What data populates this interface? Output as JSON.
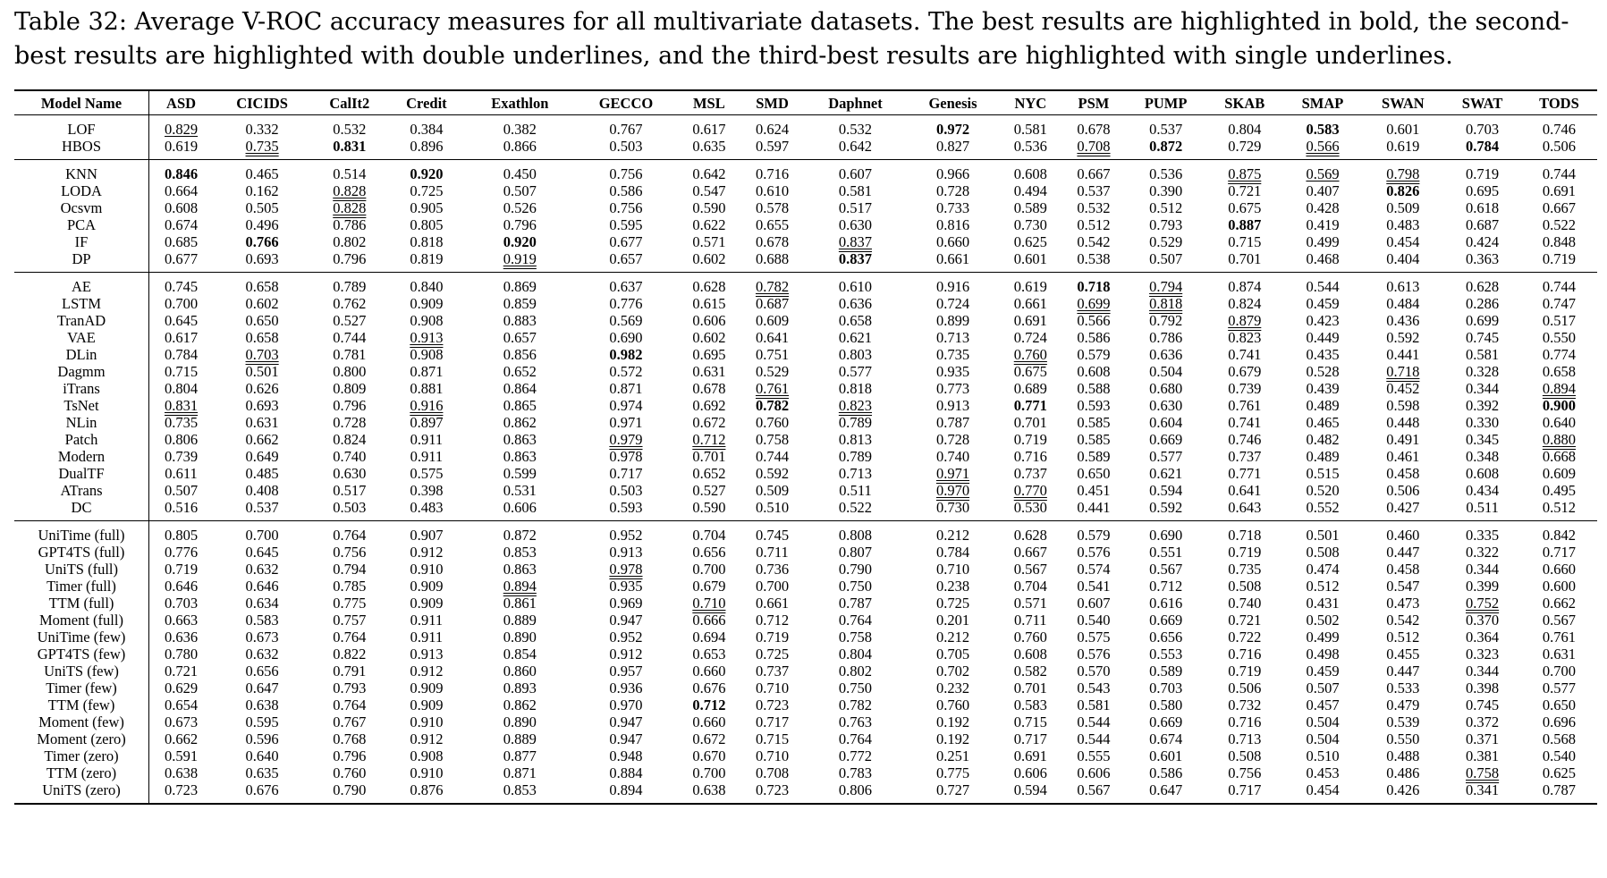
{
  "caption": "Table 32: Average V-ROC accuracy measures for all multivariate datasets. The best results are highlighted in bold, the second-best results are highlighted with double underlines, and the third-best results are highlighted with single underlines.",
  "columns": [
    "Model Name",
    "ASD",
    "CICIDS",
    "CalIt2",
    "Credit",
    "Exathlon",
    "GECCO",
    "MSL",
    "SMD",
    "Daphnet",
    "Genesis",
    "NYC",
    "PSM",
    "PUMP",
    "SKAB",
    "SMAP",
    "SWAN",
    "SWAT",
    "TODS"
  ],
  "groups": [
    [
      {
        "name": "LOF",
        "values": [
          "0.829",
          "0.332",
          "0.532",
          "0.384",
          "0.382",
          "0.767",
          "0.617",
          "0.624",
          "0.532",
          "0.972",
          "0.581",
          "0.678",
          "0.537",
          "0.804",
          "0.583",
          "0.601",
          "0.703",
          "0.746"
        ],
        "fmt": {
          "0": "u1",
          "9": "b",
          "14": "b"
        }
      },
      {
        "name": "HBOS",
        "values": [
          "0.619",
          "0.735",
          "0.831",
          "0.896",
          "0.866",
          "0.503",
          "0.635",
          "0.597",
          "0.642",
          "0.827",
          "0.536",
          "0.708",
          "0.872",
          "0.729",
          "0.566",
          "0.619",
          "0.784",
          "0.506"
        ],
        "fmt": {
          "1": "u2",
          "2": "b",
          "11": "u2",
          "12": "b",
          "14": "u2",
          "16": "b"
        }
      }
    ],
    [
      {
        "name": "KNN",
        "values": [
          "0.846",
          "0.465",
          "0.514",
          "0.920",
          "0.450",
          "0.756",
          "0.642",
          "0.716",
          "0.607",
          "0.966",
          "0.608",
          "0.667",
          "0.536",
          "0.875",
          "0.569",
          "0.798",
          "0.719",
          "0.744"
        ],
        "fmt": {
          "0": "b",
          "3": "b",
          "13": "u2",
          "14": "u1",
          "15": "u2"
        }
      },
      {
        "name": "LODA",
        "values": [
          "0.664",
          "0.162",
          "0.828",
          "0.725",
          "0.507",
          "0.586",
          "0.547",
          "0.610",
          "0.581",
          "0.728",
          "0.494",
          "0.537",
          "0.390",
          "0.721",
          "0.407",
          "0.826",
          "0.695",
          "0.691"
        ],
        "fmt": {
          "2": "u2",
          "15": "b"
        }
      },
      {
        "name": "Ocsvm",
        "values": [
          "0.608",
          "0.505",
          "0.828",
          "0.905",
          "0.526",
          "0.756",
          "0.590",
          "0.578",
          "0.517",
          "0.733",
          "0.589",
          "0.532",
          "0.512",
          "0.675",
          "0.428",
          "0.509",
          "0.618",
          "0.667"
        ],
        "fmt": {
          "2": "u2"
        }
      },
      {
        "name": "PCA",
        "values": [
          "0.674",
          "0.496",
          "0.786",
          "0.805",
          "0.796",
          "0.595",
          "0.622",
          "0.655",
          "0.630",
          "0.816",
          "0.730",
          "0.512",
          "0.793",
          "0.887",
          "0.419",
          "0.483",
          "0.687",
          "0.522"
        ],
        "fmt": {
          "13": "b"
        }
      },
      {
        "name": "IF",
        "values": [
          "0.685",
          "0.766",
          "0.802",
          "0.818",
          "0.920",
          "0.677",
          "0.571",
          "0.678",
          "0.837",
          "0.660",
          "0.625",
          "0.542",
          "0.529",
          "0.715",
          "0.499",
          "0.454",
          "0.424",
          "0.848"
        ],
        "fmt": {
          "1": "b",
          "4": "b",
          "8": "u2"
        }
      },
      {
        "name": "DP",
        "values": [
          "0.677",
          "0.693",
          "0.796",
          "0.819",
          "0.919",
          "0.657",
          "0.602",
          "0.688",
          "0.837",
          "0.661",
          "0.601",
          "0.538",
          "0.507",
          "0.701",
          "0.468",
          "0.404",
          "0.363",
          "0.719"
        ],
        "fmt": {
          "4": "u2",
          "8": "b"
        }
      }
    ],
    [
      {
        "name": "AE",
        "values": [
          "0.745",
          "0.658",
          "0.789",
          "0.840",
          "0.869",
          "0.637",
          "0.628",
          "0.782",
          "0.610",
          "0.916",
          "0.619",
          "0.718",
          "0.794",
          "0.874",
          "0.544",
          "0.613",
          "0.628",
          "0.744"
        ],
        "fmt": {
          "7": "u2",
          "11": "b",
          "12": "u2"
        }
      },
      {
        "name": "LSTM",
        "values": [
          "0.700",
          "0.602",
          "0.762",
          "0.909",
          "0.859",
          "0.776",
          "0.615",
          "0.687",
          "0.636",
          "0.724",
          "0.661",
          "0.699",
          "0.818",
          "0.824",
          "0.459",
          "0.484",
          "0.286",
          "0.747"
        ],
        "fmt": {
          "11": "u2",
          "12": "u2"
        }
      },
      {
        "name": "TranAD",
        "values": [
          "0.645",
          "0.650",
          "0.527",
          "0.908",
          "0.883",
          "0.569",
          "0.606",
          "0.609",
          "0.658",
          "0.899",
          "0.691",
          "0.566",
          "0.792",
          "0.879",
          "0.423",
          "0.436",
          "0.699",
          "0.517"
        ],
        "fmt": {
          "13": "u2"
        }
      },
      {
        "name": "VAE",
        "values": [
          "0.617",
          "0.658",
          "0.744",
          "0.913",
          "0.657",
          "0.690",
          "0.602",
          "0.641",
          "0.621",
          "0.713",
          "0.724",
          "0.586",
          "0.786",
          "0.823",
          "0.449",
          "0.592",
          "0.745",
          "0.550"
        ],
        "fmt": {
          "3": "u2"
        }
      },
      {
        "name": "DLin",
        "values": [
          "0.784",
          "0.703",
          "0.781",
          "0.908",
          "0.856",
          "0.982",
          "0.695",
          "0.751",
          "0.803",
          "0.735",
          "0.760",
          "0.579",
          "0.636",
          "0.741",
          "0.435",
          "0.441",
          "0.581",
          "0.774"
        ],
        "fmt": {
          "1": "u2",
          "5": "b",
          "10": "u2"
        }
      },
      {
        "name": "Dagmm",
        "values": [
          "0.715",
          "0.501",
          "0.800",
          "0.871",
          "0.652",
          "0.572",
          "0.631",
          "0.529",
          "0.577",
          "0.935",
          "0.675",
          "0.608",
          "0.504",
          "0.679",
          "0.528",
          "0.718",
          "0.328",
          "0.658"
        ],
        "fmt": {
          "15": "u2"
        }
      },
      {
        "name": "iTrans",
        "values": [
          "0.804",
          "0.626",
          "0.809",
          "0.881",
          "0.864",
          "0.871",
          "0.678",
          "0.761",
          "0.818",
          "0.773",
          "0.689",
          "0.588",
          "0.680",
          "0.739",
          "0.439",
          "0.452",
          "0.344",
          "0.894"
        ],
        "fmt": {
          "7": "u2",
          "17": "u2"
        }
      },
      {
        "name": "TsNet",
        "values": [
          "0.831",
          "0.693",
          "0.796",
          "0.916",
          "0.865",
          "0.974",
          "0.692",
          "0.782",
          "0.823",
          "0.913",
          "0.771",
          "0.593",
          "0.630",
          "0.761",
          "0.489",
          "0.598",
          "0.392",
          "0.900"
        ],
        "fmt": {
          "0": "u2",
          "3": "u2",
          "7": "b",
          "8": "u2",
          "10": "b",
          "17": "b"
        }
      },
      {
        "name": "NLin",
        "values": [
          "0.735",
          "0.631",
          "0.728",
          "0.897",
          "0.862",
          "0.971",
          "0.672",
          "0.760",
          "0.789",
          "0.787",
          "0.701",
          "0.585",
          "0.604",
          "0.741",
          "0.465",
          "0.448",
          "0.330",
          "0.640"
        ],
        "fmt": {}
      },
      {
        "name": "Patch",
        "values": [
          "0.806",
          "0.662",
          "0.824",
          "0.911",
          "0.863",
          "0.979",
          "0.712",
          "0.758",
          "0.813",
          "0.728",
          "0.719",
          "0.585",
          "0.669",
          "0.746",
          "0.482",
          "0.491",
          "0.345",
          "0.880"
        ],
        "fmt": {
          "5": "u2",
          "6": "u2",
          "17": "u2"
        }
      },
      {
        "name": "Modern",
        "values": [
          "0.739",
          "0.649",
          "0.740",
          "0.911",
          "0.863",
          "0.978",
          "0.701",
          "0.744",
          "0.789",
          "0.740",
          "0.716",
          "0.589",
          "0.577",
          "0.737",
          "0.489",
          "0.461",
          "0.348",
          "0.668"
        ],
        "fmt": {}
      },
      {
        "name": "DualTF",
        "values": [
          "0.611",
          "0.485",
          "0.630",
          "0.575",
          "0.599",
          "0.717",
          "0.652",
          "0.592",
          "0.713",
          "0.971",
          "0.737",
          "0.650",
          "0.621",
          "0.771",
          "0.515",
          "0.458",
          "0.608",
          "0.609"
        ],
        "fmt": {
          "9": "u2"
        }
      },
      {
        "name": "ATrans",
        "values": [
          "0.507",
          "0.408",
          "0.517",
          "0.398",
          "0.531",
          "0.503",
          "0.527",
          "0.509",
          "0.511",
          "0.970",
          "0.770",
          "0.451",
          "0.594",
          "0.641",
          "0.520",
          "0.506",
          "0.434",
          "0.495"
        ],
        "fmt": {
          "9": "u2",
          "10": "u2"
        }
      },
      {
        "name": "DC",
        "values": [
          "0.516",
          "0.537",
          "0.503",
          "0.483",
          "0.606",
          "0.593",
          "0.590",
          "0.510",
          "0.522",
          "0.730",
          "0.530",
          "0.441",
          "0.592",
          "0.643",
          "0.552",
          "0.427",
          "0.511",
          "0.512"
        ],
        "fmt": {}
      }
    ],
    [
      {
        "name": "UniTime (full)",
        "values": [
          "0.805",
          "0.700",
          "0.764",
          "0.907",
          "0.872",
          "0.952",
          "0.704",
          "0.745",
          "0.808",
          "0.212",
          "0.628",
          "0.579",
          "0.690",
          "0.718",
          "0.501",
          "0.460",
          "0.335",
          "0.842"
        ],
        "fmt": {}
      },
      {
        "name": "GPT4TS (full)",
        "values": [
          "0.776",
          "0.645",
          "0.756",
          "0.912",
          "0.853",
          "0.913",
          "0.656",
          "0.711",
          "0.807",
          "0.784",
          "0.667",
          "0.576",
          "0.551",
          "0.719",
          "0.508",
          "0.447",
          "0.322",
          "0.717"
        ],
        "fmt": {}
      },
      {
        "name": "UniTS (full)",
        "values": [
          "0.719",
          "0.632",
          "0.794",
          "0.910",
          "0.863",
          "0.978",
          "0.700",
          "0.736",
          "0.790",
          "0.710",
          "0.567",
          "0.574",
          "0.567",
          "0.735",
          "0.474",
          "0.458",
          "0.344",
          "0.660"
        ],
        "fmt": {
          "5": "u2"
        }
      },
      {
        "name": "Timer (full)",
        "values": [
          "0.646",
          "0.646",
          "0.785",
          "0.909",
          "0.894",
          "0.935",
          "0.679",
          "0.700",
          "0.750",
          "0.238",
          "0.704",
          "0.541",
          "0.712",
          "0.508",
          "0.512",
          "0.547",
          "0.399",
          "0.600"
        ],
        "fmt": {
          "4": "u2"
        }
      },
      {
        "name": "TTM (full)",
        "values": [
          "0.703",
          "0.634",
          "0.775",
          "0.909",
          "0.861",
          "0.969",
          "0.710",
          "0.661",
          "0.787",
          "0.725",
          "0.571",
          "0.607",
          "0.616",
          "0.740",
          "0.431",
          "0.473",
          "0.752",
          "0.662"
        ],
        "fmt": {
          "6": "u2",
          "16": "u2"
        }
      },
      {
        "name": "Moment (full)",
        "values": [
          "0.663",
          "0.583",
          "0.757",
          "0.911",
          "0.889",
          "0.947",
          "0.666",
          "0.712",
          "0.764",
          "0.201",
          "0.711",
          "0.540",
          "0.669",
          "0.721",
          "0.502",
          "0.542",
          "0.370",
          "0.567"
        ],
        "fmt": {}
      },
      {
        "name": "UniTime (few)",
        "values": [
          "0.636",
          "0.673",
          "0.764",
          "0.911",
          "0.890",
          "0.952",
          "0.694",
          "0.719",
          "0.758",
          "0.212",
          "0.760",
          "0.575",
          "0.656",
          "0.722",
          "0.499",
          "0.512",
          "0.364",
          "0.761"
        ],
        "fmt": {}
      },
      {
        "name": "GPT4TS (few)",
        "values": [
          "0.780",
          "0.632",
          "0.822",
          "0.913",
          "0.854",
          "0.912",
          "0.653",
          "0.725",
          "0.804",
          "0.705",
          "0.608",
          "0.576",
          "0.553",
          "0.716",
          "0.498",
          "0.455",
          "0.323",
          "0.631"
        ],
        "fmt": {}
      },
      {
        "name": "UniTS (few)",
        "values": [
          "0.721",
          "0.656",
          "0.791",
          "0.912",
          "0.860",
          "0.957",
          "0.660",
          "0.737",
          "0.802",
          "0.702",
          "0.582",
          "0.570",
          "0.589",
          "0.719",
          "0.459",
          "0.447",
          "0.344",
          "0.700"
        ],
        "fmt": {}
      },
      {
        "name": "Timer (few)",
        "values": [
          "0.629",
          "0.647",
          "0.793",
          "0.909",
          "0.893",
          "0.936",
          "0.676",
          "0.710",
          "0.750",
          "0.232",
          "0.701",
          "0.543",
          "0.703",
          "0.506",
          "0.507",
          "0.533",
          "0.398",
          "0.577"
        ],
        "fmt": {}
      },
      {
        "name": "TTM (few)",
        "values": [
          "0.654",
          "0.638",
          "0.764",
          "0.909",
          "0.862",
          "0.970",
          "0.712",
          "0.723",
          "0.782",
          "0.760",
          "0.583",
          "0.581",
          "0.580",
          "0.732",
          "0.457",
          "0.479",
          "0.745",
          "0.650"
        ],
        "fmt": {
          "6": "b"
        }
      },
      {
        "name": "Moment (few)",
        "values": [
          "0.673",
          "0.595",
          "0.767",
          "0.910",
          "0.890",
          "0.947",
          "0.660",
          "0.717",
          "0.763",
          "0.192",
          "0.715",
          "0.544",
          "0.669",
          "0.716",
          "0.504",
          "0.539",
          "0.372",
          "0.696"
        ],
        "fmt": {}
      },
      {
        "name": "Moment (zero)",
        "values": [
          "0.662",
          "0.596",
          "0.768",
          "0.912",
          "0.889",
          "0.947",
          "0.672",
          "0.715",
          "0.764",
          "0.192",
          "0.717",
          "0.544",
          "0.674",
          "0.713",
          "0.504",
          "0.550",
          "0.371",
          "0.568"
        ],
        "fmt": {}
      },
      {
        "name": "Timer (zero)",
        "values": [
          "0.591",
          "0.640",
          "0.796",
          "0.908",
          "0.877",
          "0.948",
          "0.670",
          "0.710",
          "0.772",
          "0.251",
          "0.691",
          "0.555",
          "0.601",
          "0.508",
          "0.510",
          "0.488",
          "0.381",
          "0.540"
        ],
        "fmt": {}
      },
      {
        "name": "TTM (zero)",
        "values": [
          "0.638",
          "0.635",
          "0.760",
          "0.910",
          "0.871",
          "0.884",
          "0.700",
          "0.708",
          "0.783",
          "0.775",
          "0.606",
          "0.606",
          "0.586",
          "0.756",
          "0.453",
          "0.486",
          "0.758",
          "0.625"
        ],
        "fmt": {
          "16": "u2"
        }
      },
      {
        "name": "UniTS (zero)",
        "values": [
          "0.723",
          "0.676",
          "0.790",
          "0.876",
          "0.853",
          "0.894",
          "0.638",
          "0.723",
          "0.806",
          "0.727",
          "0.594",
          "0.567",
          "0.647",
          "0.717",
          "0.454",
          "0.426",
          "0.341",
          "0.787"
        ],
        "fmt": {}
      }
    ]
  ]
}
